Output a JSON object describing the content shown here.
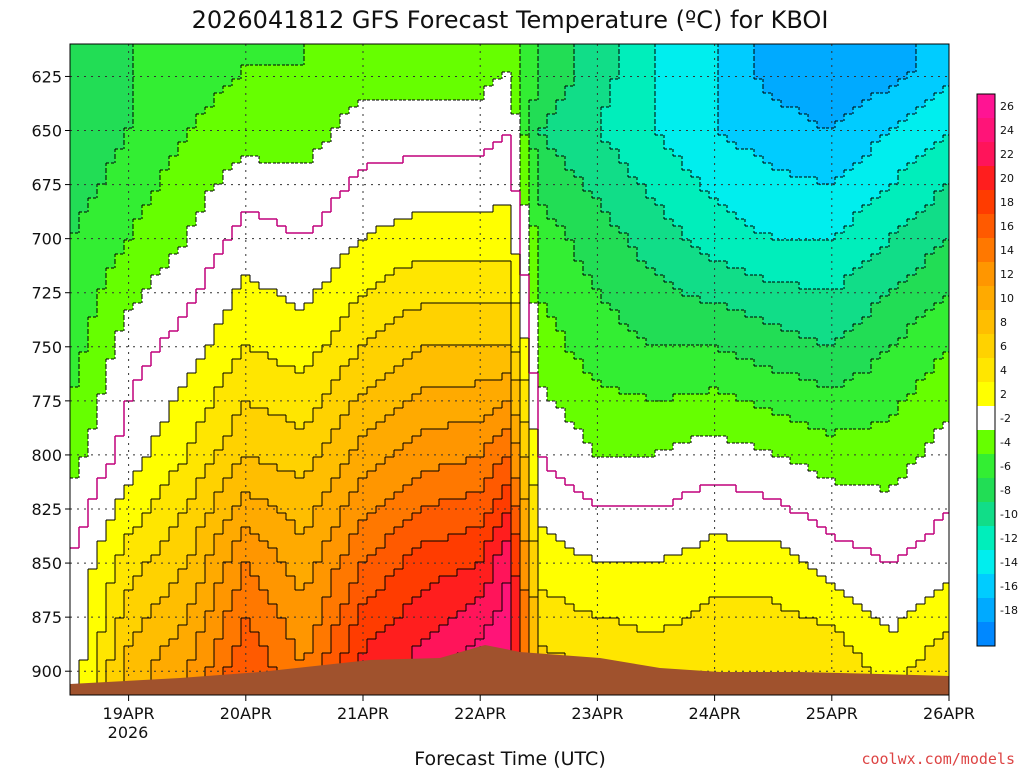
{
  "chart_data": {
    "type": "heatmap",
    "title": "2026041812 GFS Forecast Temperature (ºC) for KBOI",
    "xlabel": "Forecast Time (UTC)",
    "ylabel": "",
    "x_ticks": [
      "19APR",
      "20APR",
      "21APR",
      "22APR",
      "23APR",
      "24APR",
      "25APR",
      "26APR"
    ],
    "x_year_label": "2026",
    "xlim": [
      "2026-04-18T12",
      "2026-04-26T00"
    ],
    "y_ticks": [
      625,
      650,
      675,
      700,
      725,
      750,
      775,
      800,
      825,
      850,
      875,
      900
    ],
    "ylim": [
      610,
      911
    ],
    "y_scale": "pressure (hPa), increasing downward",
    "contour_interval": 2,
    "colorbar": {
      "levels": [
        26,
        24,
        22,
        20,
        18,
        16,
        14,
        12,
        10,
        8,
        6,
        4,
        2,
        -2,
        -4,
        -6,
        -8,
        -10,
        -12,
        -14,
        -16,
        -18
      ],
      "colors": [
        "#ff1493",
        "#ff1478",
        "#ff145a",
        "#ff1e1e",
        "#ff3c00",
        "#ff5a00",
        "#ff7800",
        "#ff9600",
        "#ffaa00",
        "#ffbe00",
        "#ffd200",
        "#ffe600",
        "#ffff00",
        "#ffffff",
        "#66ff00",
        "#33ee33",
        "#22dd55",
        "#11dd88",
        "#00eebb",
        "#00eeee",
        "#00ccff",
        "#00aaff",
        "#0088ff"
      ]
    },
    "time_points": [
      "18APR12",
      "19APR00",
      "19APR12",
      "20APR00",
      "20APR12",
      "21APR00",
      "21APR12",
      "22APR00",
      "22APR06",
      "22APR12",
      "23APR00",
      "23APR12",
      "24APR00",
      "24APR12",
      "25APR00",
      "25APR12",
      "26APR00"
    ],
    "pressure_levels": [
      620,
      650,
      700,
      750,
      800,
      850,
      900
    ],
    "temperature_c": [
      [
        -7,
        -8,
        -6,
        -5,
        -3,
        0,
        0
      ],
      [
        -6,
        -6,
        -4,
        -1,
        1,
        5,
        9
      ],
      [
        -5,
        -4,
        -2,
        1,
        4,
        8,
        12
      ],
      [
        -4,
        -3,
        1,
        4,
        8,
        14,
        18
      ],
      [
        -4,
        -3,
        0,
        3,
        7,
        11,
        14
      ],
      [
        -3,
        -1,
        2,
        6,
        11,
        16,
        21
      ],
      [
        -3,
        -1,
        3,
        8,
        13,
        19,
        23
      ],
      [
        -3,
        -1,
        3,
        8,
        14,
        20,
        26
      ],
      [
        -2,
        0,
        3,
        8,
        16,
        24,
        26
      ],
      [
        -6,
        -8,
        -5,
        -3,
        0,
        3,
        7
      ],
      [
        -9,
        -10,
        -7,
        -5,
        -2,
        2,
        6
      ],
      [
        -12,
        -12,
        -9,
        -6,
        -2,
        2,
        5
      ],
      [
        -14,
        -14,
        -11,
        -6,
        -1,
        3,
        6
      ],
      [
        -17,
        -15,
        -12,
        -7,
        -2,
        3,
        6
      ],
      [
        -18,
        -16,
        -12,
        -8,
        -3,
        1,
        6
      ],
      [
        -17,
        -14,
        -10,
        -6,
        -3,
        0,
        3
      ],
      [
        -15,
        -12,
        -8,
        -4,
        -1,
        1,
        6
      ]
    ],
    "terrain": "ground surface shown in brown near 900-911 hPa",
    "grid": true
  },
  "credit": "coolwx.com/models",
  "colors": {
    "ground": "#a0522d",
    "freezing_contour": "#c0007a"
  }
}
